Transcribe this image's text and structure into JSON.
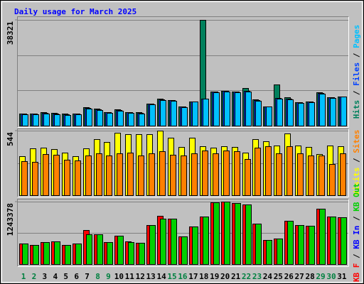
{
  "chart_data": {
    "type": "bar",
    "title": "Daily usage for March 2025",
    "legend_separator": "/",
    "categories": [
      "1",
      "2",
      "3",
      "4",
      "5",
      "6",
      "7",
      "8",
      "9",
      "10",
      "11",
      "12",
      "13",
      "14",
      "15",
      "16",
      "17",
      "18",
      "19",
      "20",
      "21",
      "22",
      "23",
      "24",
      "25",
      "26",
      "27",
      "28",
      "29",
      "30",
      "31"
    ],
    "category_colors": [
      "#008040",
      "#008040",
      "#000000",
      "#000000",
      "#000000",
      "#000000",
      "#000000",
      "#008040",
      "#008040",
      "#000000",
      "#000000",
      "#000000",
      "#000000",
      "#000000",
      "#008040",
      "#008040",
      "#000000",
      "#000000",
      "#000000",
      "#000000",
      "#000000",
      "#008040",
      "#008040",
      "#000000",
      "#000000",
      "#000000",
      "#000000",
      "#000000",
      "#008040",
      "#008040",
      "#000000"
    ],
    "panels": [
      {
        "ylim": [
          0,
          38321
        ],
        "yticks": [
          38321
        ],
        "series": [
          {
            "name": "Hits",
            "color": "#00805c",
            "values": [
              4403,
              4403,
              4921,
              4662,
              4403,
              4403,
              6734,
              6216,
              4921,
              5957,
              4921,
              4921,
              8029,
              9842,
              9324,
              6993,
              8806,
              38321,
              12432,
              12691,
              12432,
              13727,
              9583,
              6993,
              15022,
              10360,
              8547,
              8806,
              12173,
              10360,
              10619
            ]
          },
          {
            "name": "Files",
            "color": "#0040ff",
            "values": [
              4250,
              4250,
              4550,
              4300,
              4000,
              4250,
              6400,
              5850,
              4800,
              5600,
              4800,
              4550,
              7900,
              9550,
              9200,
              6850,
              8806,
              9900,
              12300,
              12550,
              12300,
              12600,
              9300,
              6993,
              10000,
              9750,
              8400,
              8650,
              11900,
              10250,
              10619
            ]
          },
          {
            "name": "Pages",
            "color": "#00c0ff",
            "values": [
              4144,
              4144,
              4403,
              4144,
              3885,
              4144,
              6216,
              5698,
              4662,
              5439,
              4662,
              4403,
              7770,
              9324,
              9065,
              6734,
              8806,
              9842,
              12173,
              12432,
              12173,
              12432,
              9065,
              6993,
              9842,
              9583,
              8288,
              8547,
              11655,
              10101,
              10619
            ]
          }
        ]
      },
      {
        "ylim": [
          0,
          544
        ],
        "yticks": [
          544
        ],
        "series": [
          {
            "name": "Visits",
            "color": "#ffff00",
            "values": [
              329,
              395,
              401,
              389,
              359,
              329,
              395,
              472,
              449,
              526,
              514,
              514,
              514,
              544,
              484,
              407,
              484,
              413,
              401,
              413,
              407,
              359,
              472,
              454,
              419,
              520,
              419,
              407,
              347,
              419,
              413
            ]
          },
          {
            "name": "Sites",
            "color": "#ff8000",
            "values": [
              287,
              281,
              347,
              341,
              299,
              293,
              335,
              353,
              335,
              353,
              359,
              335,
              353,
              371,
              341,
              335,
              353,
              377,
              353,
              377,
              371,
              305,
              401,
              413,
              353,
              413,
              353,
              335,
              335,
              263,
              353
            ]
          }
        ]
      },
      {
        "ylim": [
          0,
          1243378
        ],
        "yticks": [
          1243378
        ],
        "series": [
          {
            "name": "KB F",
            "color": "#ff0000",
            "values": [
              414468,
              385884,
              443052,
              457344,
              385884,
              414468,
              671724,
              600264,
              443052,
              571680,
              457344,
              428760,
              771768,
              957564,
              900396,
              557388,
              743184,
              943272,
              1229112,
              1243378,
              1214820,
              1186236,
              800352,
              485928,
              514512,
              857520,
              771768,
              757476,
              1100484,
              943272,
              928980
            ]
          },
          {
            "name": "KB In",
            "color": "#0000ff",
            "values": [
              0,
              0,
              0,
              0,
              0,
              0,
              0,
              0,
              0,
              0,
              0,
              0,
              0,
              0,
              0,
              0,
              0,
              0,
              0,
              0,
              0,
              0,
              0,
              0,
              0,
              0,
              0,
              0,
              0,
              0,
              0
            ]
          },
          {
            "name": "KB Out",
            "color": "#00d000",
            "values": [
              414468,
              385884,
              443052,
              457344,
              385884,
              414468,
              600264,
              600264,
              443052,
              571680,
              443052,
              428760,
              771768,
              900396,
              900396,
              557388,
              743184,
              943272,
              1229112,
              1243378,
              1214820,
              1186236,
              800352,
              485928,
              514512,
              857520,
              771768,
              757476,
              1100484,
              943272,
              928980
            ]
          }
        ]
      }
    ]
  }
}
